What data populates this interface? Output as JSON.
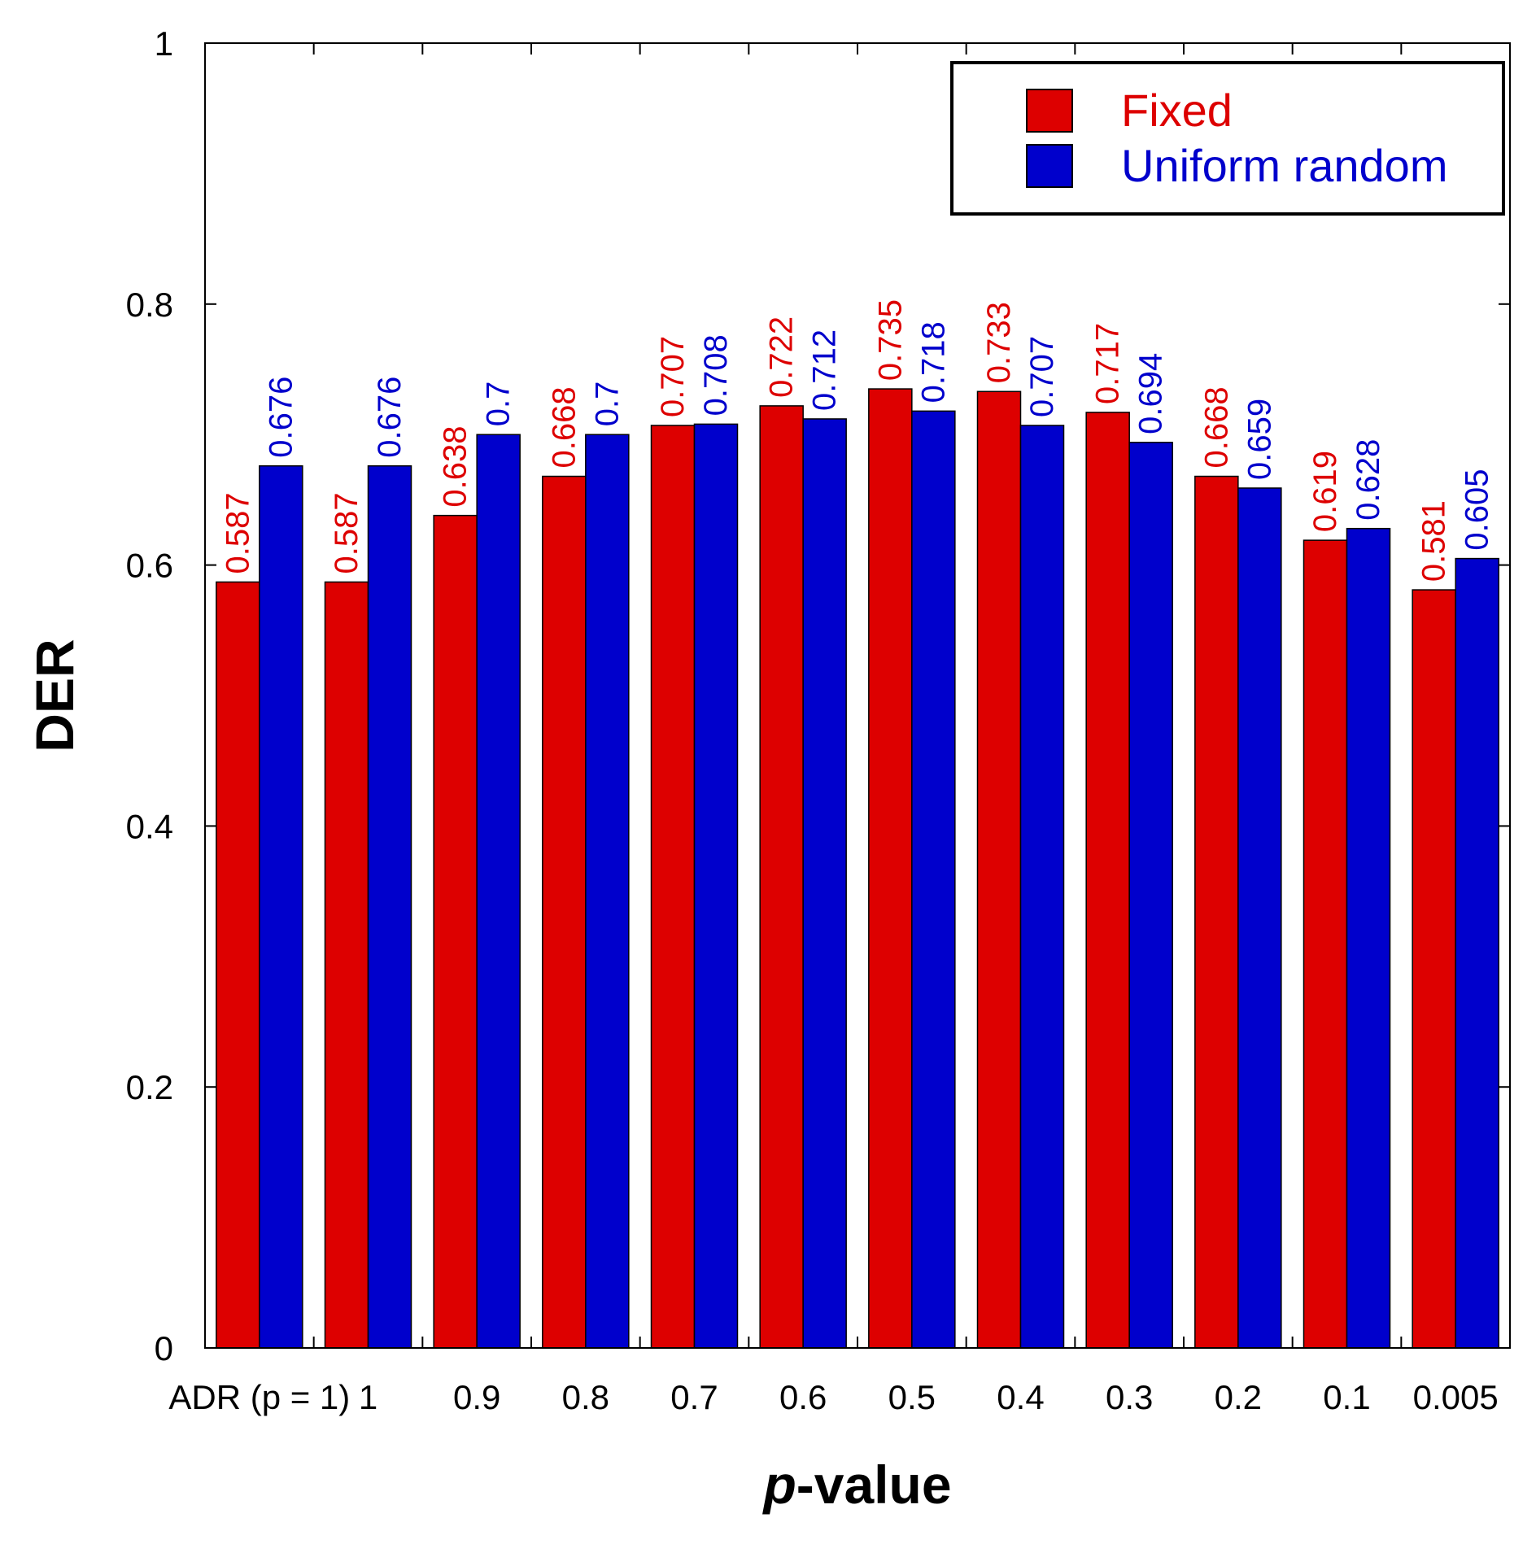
{
  "chart_data": {
    "type": "bar",
    "title": "",
    "xlabel_italic": "p",
    "xlabel_rest": "-value",
    "ylabel": "DER",
    "ylim": [
      0,
      1
    ],
    "yticks": [
      0,
      0.2,
      0.4,
      0.6,
      0.8,
      1
    ],
    "ytick_labels": [
      "0",
      "0.2",
      "0.4",
      "0.6",
      "0.8",
      "1"
    ],
    "categories": [
      "ADR (p = 1)",
      "1",
      "0.9",
      "0.8",
      "0.7",
      "0.6",
      "0.5",
      "0.4",
      "0.3",
      "0.2",
      "0.1",
      "0.005"
    ],
    "series": [
      {
        "name": "Fixed",
        "color": "#dd0000",
        "values": [
          0.587,
          0.587,
          0.638,
          0.668,
          0.707,
          0.722,
          0.735,
          0.733,
          0.717,
          0.668,
          0.619,
          0.581
        ],
        "labels": [
          "0.587",
          "0.587",
          "0.638",
          "0.668",
          "0.707",
          "0.722",
          "0.735",
          "0.733",
          "0.717",
          "0.668",
          "0.619",
          "0.581"
        ]
      },
      {
        "name": "Uniform random",
        "color": "#0000cc",
        "values": [
          0.676,
          0.676,
          0.7,
          0.7,
          0.708,
          0.712,
          0.718,
          0.707,
          0.694,
          0.659,
          0.628,
          0.605
        ],
        "labels": [
          "0.676",
          "0.676",
          "0.7",
          "0.7",
          "0.708",
          "0.712",
          "0.718",
          "0.707",
          "0.694",
          "0.659",
          "0.628",
          "0.605"
        ]
      }
    ],
    "legend": {
      "position": "top-right",
      "entries": [
        "Fixed",
        "Uniform random"
      ]
    },
    "grid": false
  }
}
